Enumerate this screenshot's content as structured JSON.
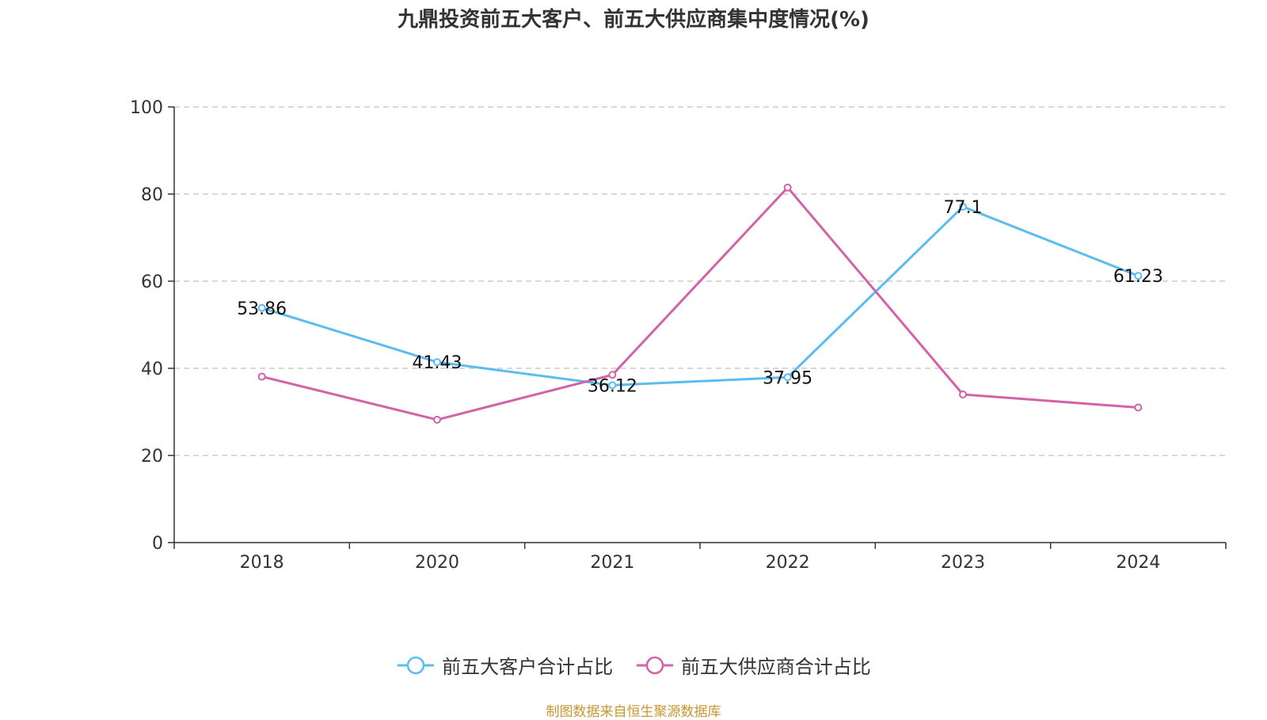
{
  "chart_data": {
    "type": "line",
    "title": "九鼎投资前五大客户、前五大供应商集中度情况(%)",
    "categories": [
      "2018",
      "2020",
      "2021",
      "2022",
      "2023",
      "2024"
    ],
    "ylim": [
      0,
      100
    ],
    "yticks": [
      0,
      20,
      40,
      60,
      80,
      100
    ],
    "grid": true,
    "legend_position": "bottom",
    "series": [
      {
        "name": "前五大客户合计占比",
        "color": "#5bbcf0",
        "values": [
          53.86,
          41.43,
          36.12,
          37.95,
          77.1,
          61.23
        ],
        "labels": [
          "53.86",
          "41.43",
          "36.12",
          "37.95",
          "77.1",
          "61.23"
        ],
        "show_labels": true
      },
      {
        "name": "前五大供应商合计占比",
        "color": "#d362a8",
        "values": [
          38.1,
          28.2,
          38.5,
          81.5,
          34.0,
          31.0
        ],
        "show_labels": false
      }
    ]
  },
  "source": {
    "text": "制图数据来自恒生聚源数据库",
    "color": "#c9962f"
  }
}
